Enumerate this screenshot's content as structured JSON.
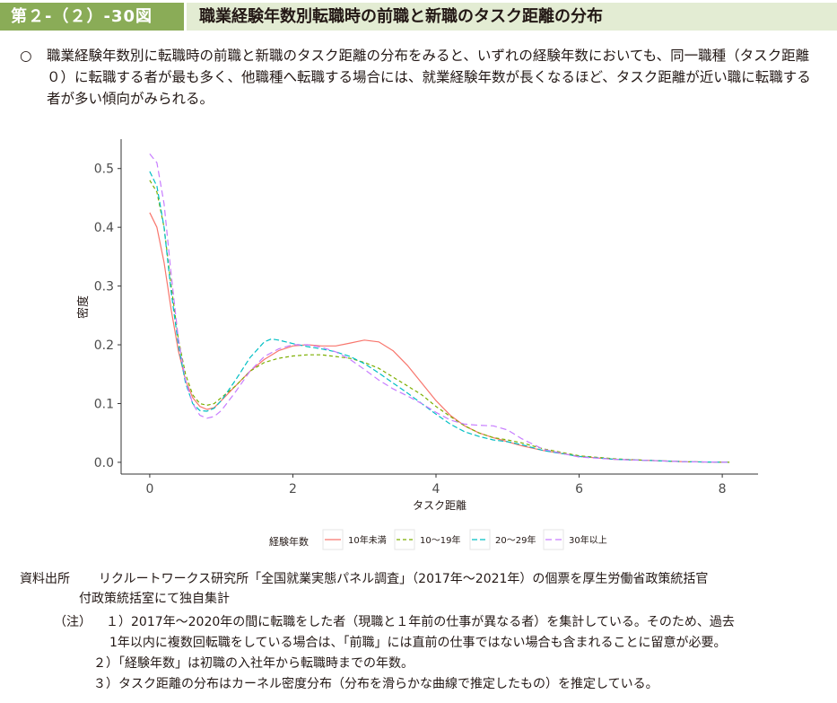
{
  "header": {
    "figure_number": "第２-（２）-30図",
    "title": "職業経験年数別転職時の前職と新職のタスク距離の分布"
  },
  "summary": {
    "bullet": "○",
    "text": "職業経験年数別に転職時の前職と新職のタスク距離の分布をみると、いずれの経験年数においても、同一職種（タスク距離０）に転職する者が最も多く、他職種へ転職する場合には、就業経験年数が長くなるほど、タスク距離が近い職に転職する者が多い傾向がみられる。"
  },
  "chart_data": {
    "type": "line",
    "title": "",
    "xlabel": "タスク距離",
    "ylabel": "密度",
    "xlim": [
      -0.4,
      8.5
    ],
    "ylim": [
      -0.02,
      0.55
    ],
    "x_ticks": [
      "0",
      "2",
      "4",
      "6",
      "8"
    ],
    "y_ticks": [
      "0.0",
      "0.1",
      "0.2",
      "0.3",
      "0.4",
      "0.5"
    ],
    "grid": false,
    "legend_title": "経験年数",
    "legend_position": "bottom",
    "series": [
      {
        "name": "10年未満",
        "color": "#f8766d",
        "dash": "solid",
        "points": [
          [
            0,
            0.425
          ],
          [
            0.1,
            0.4
          ],
          [
            0.2,
            0.34
          ],
          [
            0.3,
            0.26
          ],
          [
            0.4,
            0.19
          ],
          [
            0.5,
            0.14
          ],
          [
            0.6,
            0.11
          ],
          [
            0.7,
            0.095
          ],
          [
            0.8,
            0.09
          ],
          [
            0.9,
            0.093
          ],
          [
            1.0,
            0.105
          ],
          [
            1.2,
            0.13
          ],
          [
            1.4,
            0.155
          ],
          [
            1.6,
            0.175
          ],
          [
            1.8,
            0.19
          ],
          [
            2.0,
            0.198
          ],
          [
            2.2,
            0.2
          ],
          [
            2.4,
            0.198
          ],
          [
            2.6,
            0.198
          ],
          [
            2.8,
            0.203
          ],
          [
            3.0,
            0.208
          ],
          [
            3.2,
            0.205
          ],
          [
            3.4,
            0.19
          ],
          [
            3.6,
            0.165
          ],
          [
            3.8,
            0.135
          ],
          [
            4.0,
            0.105
          ],
          [
            4.2,
            0.08
          ],
          [
            4.4,
            0.062
          ],
          [
            4.6,
            0.05
          ],
          [
            4.8,
            0.042
          ],
          [
            5.0,
            0.035
          ],
          [
            5.2,
            0.028
          ],
          [
            5.5,
            0.02
          ],
          [
            6.0,
            0.01
          ],
          [
            6.5,
            0.005
          ],
          [
            7.0,
            0.003
          ],
          [
            7.5,
            0.001
          ],
          [
            8.1,
            0.0
          ]
        ]
      },
      {
        "name": "10～19年",
        "color": "#7cae00",
        "dash": "4,3",
        "points": [
          [
            0,
            0.48
          ],
          [
            0.1,
            0.46
          ],
          [
            0.2,
            0.4
          ],
          [
            0.3,
            0.3
          ],
          [
            0.4,
            0.21
          ],
          [
            0.5,
            0.15
          ],
          [
            0.6,
            0.115
          ],
          [
            0.7,
            0.1
          ],
          [
            0.8,
            0.097
          ],
          [
            0.9,
            0.1
          ],
          [
            1.0,
            0.11
          ],
          [
            1.2,
            0.13
          ],
          [
            1.4,
            0.155
          ],
          [
            1.6,
            0.17
          ],
          [
            1.8,
            0.177
          ],
          [
            2.0,
            0.181
          ],
          [
            2.2,
            0.183
          ],
          [
            2.4,
            0.183
          ],
          [
            2.6,
            0.18
          ],
          [
            2.8,
            0.177
          ],
          [
            3.0,
            0.17
          ],
          [
            3.2,
            0.16
          ],
          [
            3.4,
            0.145
          ],
          [
            3.6,
            0.13
          ],
          [
            3.8,
            0.115
          ],
          [
            4.0,
            0.095
          ],
          [
            4.2,
            0.078
          ],
          [
            4.4,
            0.062
          ],
          [
            4.6,
            0.05
          ],
          [
            4.8,
            0.042
          ],
          [
            5.0,
            0.038
          ],
          [
            5.2,
            0.033
          ],
          [
            5.5,
            0.023
          ],
          [
            6.0,
            0.011
          ],
          [
            6.5,
            0.006
          ],
          [
            7.0,
            0.003
          ],
          [
            7.5,
            0.001
          ],
          [
            8.1,
            0.0
          ]
        ]
      },
      {
        "name": "20～29年",
        "color": "#00bfc4",
        "dash": "6,3",
        "points": [
          [
            0,
            0.495
          ],
          [
            0.1,
            0.47
          ],
          [
            0.2,
            0.4
          ],
          [
            0.3,
            0.29
          ],
          [
            0.4,
            0.2
          ],
          [
            0.5,
            0.135
          ],
          [
            0.6,
            0.1
          ],
          [
            0.7,
            0.088
          ],
          [
            0.8,
            0.087
          ],
          [
            0.9,
            0.092
          ],
          [
            1.0,
            0.105
          ],
          [
            1.2,
            0.14
          ],
          [
            1.4,
            0.178
          ],
          [
            1.6,
            0.205
          ],
          [
            1.7,
            0.21
          ],
          [
            1.8,
            0.208
          ],
          [
            2.0,
            0.202
          ],
          [
            2.2,
            0.197
          ],
          [
            2.4,
            0.193
          ],
          [
            2.6,
            0.188
          ],
          [
            2.8,
            0.18
          ],
          [
            3.0,
            0.168
          ],
          [
            3.2,
            0.152
          ],
          [
            3.4,
            0.135
          ],
          [
            3.6,
            0.118
          ],
          [
            3.8,
            0.1
          ],
          [
            4.0,
            0.082
          ],
          [
            4.2,
            0.065
          ],
          [
            4.4,
            0.052
          ],
          [
            4.6,
            0.044
          ],
          [
            4.8,
            0.038
          ],
          [
            5.0,
            0.035
          ],
          [
            5.2,
            0.03
          ],
          [
            5.5,
            0.02
          ],
          [
            6.0,
            0.01
          ],
          [
            6.5,
            0.005
          ],
          [
            7.0,
            0.003
          ],
          [
            7.5,
            0.001
          ],
          [
            8.1,
            0.0
          ]
        ]
      },
      {
        "name": "30年以上",
        "color": "#c77cff",
        "dash": "7,4",
        "points": [
          [
            0,
            0.525
          ],
          [
            0.1,
            0.51
          ],
          [
            0.2,
            0.44
          ],
          [
            0.3,
            0.32
          ],
          [
            0.4,
            0.21
          ],
          [
            0.5,
            0.14
          ],
          [
            0.6,
            0.1
          ],
          [
            0.7,
            0.08
          ],
          [
            0.8,
            0.075
          ],
          [
            0.9,
            0.078
          ],
          [
            1.0,
            0.088
          ],
          [
            1.2,
            0.12
          ],
          [
            1.4,
            0.155
          ],
          [
            1.6,
            0.18
          ],
          [
            1.8,
            0.193
          ],
          [
            2.0,
            0.2
          ],
          [
            2.2,
            0.2
          ],
          [
            2.4,
            0.196
          ],
          [
            2.6,
            0.188
          ],
          [
            2.8,
            0.175
          ],
          [
            3.0,
            0.158
          ],
          [
            3.2,
            0.14
          ],
          [
            3.4,
            0.125
          ],
          [
            3.6,
            0.113
          ],
          [
            3.8,
            0.1
          ],
          [
            4.0,
            0.085
          ],
          [
            4.2,
            0.072
          ],
          [
            4.4,
            0.065
          ],
          [
            4.6,
            0.063
          ],
          [
            4.8,
            0.062
          ],
          [
            5.0,
            0.055
          ],
          [
            5.2,
            0.04
          ],
          [
            5.5,
            0.022
          ],
          [
            6.0,
            0.009
          ],
          [
            6.5,
            0.005
          ],
          [
            7.0,
            0.003
          ],
          [
            7.5,
            0.001
          ],
          [
            8.1,
            0.0
          ]
        ]
      }
    ]
  },
  "notes": {
    "source_label": "資料出所",
    "source_text": "リクルートワークス研究所「全国就業実態パネル調査」（2017年～2021年）の個票を厚生労働省政策統括官",
    "source_text2": "付政策統括室にて独自集計",
    "note_label": "（注）",
    "note1": "１）2017年～2020年の間に転職をした者（現職と１年前の仕事が異なる者）を集計している。そのため、過去",
    "note1b": "1年以内に複数回転職をしている場合は、「前職」には直前の仕事ではない場合も含まれることに留意が必要。",
    "note2": "２）「経験年数」は初職の入社年から転職時までの年数。",
    "note3": "３）タスク距離の分布はカーネル密度分布（分布を滑らかな曲線で推定したもの）を推定している。"
  }
}
